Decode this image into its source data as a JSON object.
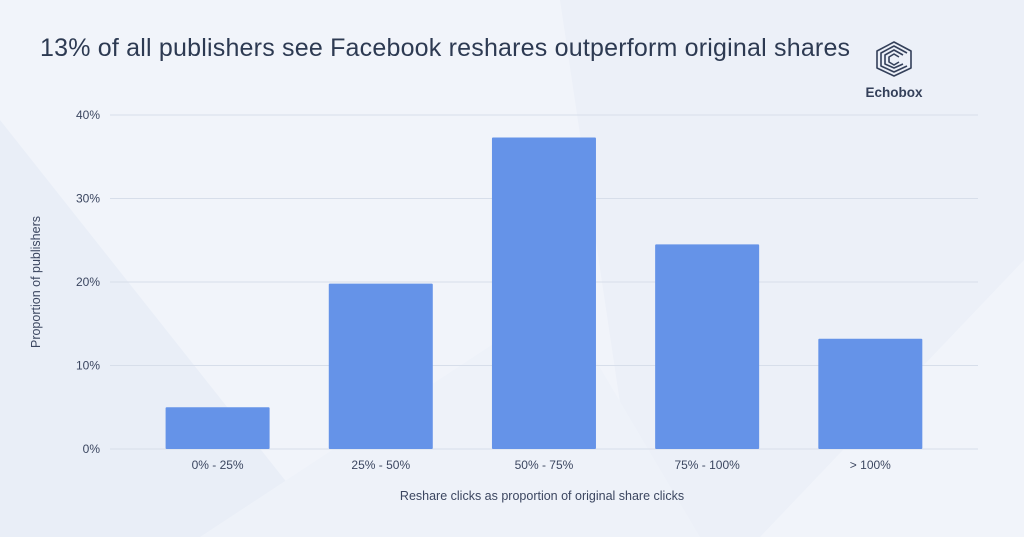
{
  "title": "13% of all publishers see Facebook reshares outperform original shares",
  "brand": {
    "name": "Echobox",
    "icon": "echobox-cube-icon"
  },
  "colors": {
    "bar": "#6593e8",
    "grid": "#d7deea",
    "text": "#2d3a52",
    "background": "#f1f4fa"
  },
  "chart_data": {
    "type": "bar",
    "categories": [
      "0% - 25%",
      "25% - 50%",
      "50% - 75%",
      "75% - 100%",
      "> 100%"
    ],
    "values": [
      5,
      19.8,
      37.3,
      24.5,
      13.2
    ],
    "xlabel": "Reshare clicks as proportion of original share clicks",
    "ylabel": "Proportion of publishers",
    "ylim": [
      0,
      40
    ],
    "yticks": [
      0,
      10,
      20,
      30,
      40
    ],
    "ytick_labels": [
      "0%",
      "10%",
      "20%",
      "30%",
      "40%"
    ],
    "grid": true,
    "legend": "none"
  }
}
